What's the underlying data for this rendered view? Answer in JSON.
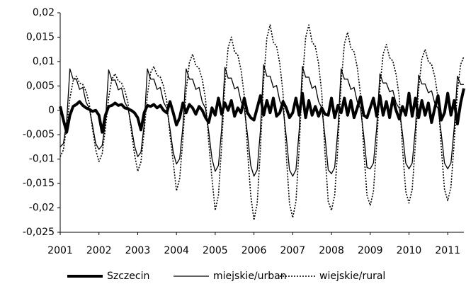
{
  "chart_data": {
    "type": "line",
    "categories": [
      "2001",
      null,
      null,
      null,
      null,
      null,
      null,
      null,
      null,
      null,
      null,
      null,
      "2002",
      null,
      null,
      null,
      null,
      null,
      null,
      null,
      null,
      null,
      null,
      null,
      "2003",
      null,
      null,
      null,
      null,
      null,
      null,
      null,
      null,
      null,
      null,
      null,
      "2004",
      null,
      null,
      null,
      null,
      null,
      null,
      null,
      null,
      null,
      null,
      null,
      "2005",
      null,
      null,
      null,
      null,
      null,
      null,
      null,
      null,
      null,
      null,
      null,
      "2006",
      null,
      null,
      null,
      null,
      null,
      null,
      null,
      null,
      null,
      null,
      null,
      "2007",
      null,
      null,
      null,
      null,
      null,
      null,
      null,
      null,
      null,
      null,
      null,
      "2008",
      null,
      null,
      null,
      null,
      null,
      null,
      null,
      null,
      null,
      null,
      null,
      "2009",
      null,
      null,
      null,
      null,
      null,
      null,
      null,
      null,
      null,
      null,
      null,
      "2010",
      null,
      null,
      null,
      null,
      null,
      null,
      null,
      null,
      null,
      null,
      null,
      "2011",
      null,
      null,
      null,
      null,
      null
    ],
    "ylim": [
      -0.025,
      0.02
    ],
    "yticks": [
      {
        "value": -0.025,
        "label": "-0,025"
      },
      {
        "value": -0.02,
        "label": "-0,02"
      },
      {
        "value": -0.015,
        "label": "-0,015"
      },
      {
        "value": -0.01,
        "label": "-0,01"
      },
      {
        "value": -0.005,
        "label": "-0,005"
      },
      0,
      {
        "value": 0.005,
        "label": "0,005"
      },
      {
        "value": 0.01,
        "label": "0,01"
      },
      {
        "value": 0.015,
        "label": "0,015"
      },
      {
        "value": 0.02,
        "label": "0,02"
      }
    ],
    "grid": false,
    "legend": "bottom",
    "series": [
      {
        "name": "Szczecin",
        "color": "#000000",
        "line_style": "solid",
        "line_width": 4,
        "values": [
          0.0008,
          -0.002,
          -0.0045,
          -0.001,
          0.0008,
          0.0012,
          0.0018,
          0.001,
          0.0005,
          0.0002,
          -0.0002,
          0.0,
          -0.001,
          -0.0045,
          -0.001,
          0.0008,
          0.001,
          0.0015,
          0.001,
          0.0012,
          0.0005,
          0.0003,
          0.0,
          -0.0005,
          -0.0015,
          -0.004,
          -0.0005,
          0.001,
          0.0008,
          0.0012,
          0.0005,
          0.001,
          0.0,
          -0.0005,
          0.0018,
          -0.0005,
          -0.003,
          -0.0015,
          0.0015,
          -0.0005,
          0.0012,
          0.0005,
          -0.0008,
          0.0008,
          0.0,
          -0.0015,
          -0.0025,
          0.0005,
          -0.001,
          0.0025,
          -0.0008,
          0.0015,
          0.0,
          0.002,
          -0.0012,
          0.0005,
          -0.0005,
          0.0025,
          -0.0005,
          -0.0015,
          -0.002,
          0.0005,
          0.003,
          -0.001,
          0.002,
          -0.0005,
          0.0025,
          -0.0012,
          -0.0005,
          0.0018,
          0.0005,
          -0.0015,
          -0.0005,
          0.0025,
          -0.001,
          0.0035,
          -0.0015,
          0.002,
          -0.001,
          0.0008,
          -0.0012,
          0.0005,
          -0.0008,
          -0.001,
          0.0025,
          -0.0015,
          0.001,
          -0.0005,
          0.0025,
          -0.001,
          0.002,
          -0.0015,
          0.0005,
          0.0028,
          -0.001,
          -0.0015,
          0.0005,
          0.0025,
          -0.0012,
          0.003,
          -0.001,
          0.0018,
          -0.0015,
          0.0025,
          0.0,
          -0.0018,
          0.0008,
          -0.001,
          0.0035,
          -0.0012,
          0.0025,
          -0.0015,
          0.002,
          -0.001,
          0.0015,
          -0.0025,
          0.0005,
          0.003,
          -0.002,
          -0.0005,
          0.0035,
          -0.001,
          0.002,
          -0.0028,
          0.0015,
          0.0045
        ]
      },
      {
        "name": "miejskie/urban",
        "color": "#000000",
        "line_style": "solid",
        "line_width": 1.3,
        "values": [
          -0.0075,
          -0.0068,
          -0.0023,
          0.0085,
          0.0064,
          0.0064,
          0.0043,
          0.0047,
          0.0017,
          0.0004,
          -0.003,
          -0.0068,
          -0.008,
          -0.0072,
          -0.0024,
          0.0083,
          0.0062,
          0.0062,
          0.0042,
          0.0046,
          0.0017,
          0.0004,
          -0.0032,
          -0.0072,
          -0.0095,
          -0.0086,
          -0.0029,
          0.0085,
          0.0064,
          0.0064,
          0.0043,
          0.0047,
          0.0017,
          0.0004,
          -0.0038,
          -0.0086,
          -0.011,
          -0.0099,
          -0.0033,
          0.0085,
          0.0064,
          0.0064,
          0.0043,
          0.0047,
          0.0017,
          0.0004,
          -0.0044,
          -0.0099,
          -0.0125,
          -0.0113,
          -0.0038,
          0.0088,
          0.0066,
          0.0066,
          0.0044,
          0.0048,
          0.0018,
          0.0004,
          -0.005,
          -0.0113,
          -0.0135,
          -0.0122,
          -0.0041,
          0.0093,
          0.007,
          0.007,
          0.0047,
          0.0051,
          0.0019,
          0.0005,
          -0.0054,
          -0.0122,
          -0.0135,
          -0.0122,
          -0.0041,
          0.009,
          0.0068,
          0.0068,
          0.0045,
          0.005,
          0.0018,
          0.0005,
          -0.0054,
          -0.0122,
          -0.013,
          -0.0117,
          -0.0039,
          0.0085,
          0.0064,
          0.0064,
          0.0043,
          0.0047,
          0.0017,
          0.0004,
          -0.0052,
          -0.0117,
          -0.012,
          -0.0108,
          -0.0036,
          0.0075,
          0.0056,
          0.0056,
          0.0038,
          0.0041,
          0.0015,
          0.0004,
          -0.0048,
          -0.0108,
          -0.012,
          -0.0108,
          -0.0036,
          0.0072,
          0.0054,
          0.0054,
          0.0036,
          0.004,
          0.0014,
          0.0004,
          -0.0048,
          -0.0108,
          -0.012,
          -0.0108,
          -0.0036,
          0.007,
          0.0053,
          0.0053
        ]
      },
      {
        "name": "wiejskie/rural",
        "color": "#000000",
        "line_style": "dotted",
        "line_width": 1.6,
        "values": [
          -0.0095,
          -0.0081,
          -0.0033,
          0.0025,
          0.006,
          0.007,
          0.0056,
          0.0053,
          0.0039,
          0.0014,
          -0.0038,
          -0.0081,
          -0.0105,
          -0.0089,
          -0.0037,
          0.0026,
          0.0064,
          0.0075,
          0.006,
          0.0056,
          0.0041,
          0.0015,
          -0.0042,
          -0.0089,
          -0.0125,
          -0.0106,
          -0.0044,
          0.0032,
          0.0077,
          0.009,
          0.0072,
          0.0068,
          0.005,
          0.0018,
          -0.005,
          -0.0106,
          -0.0165,
          -0.014,
          -0.0058,
          0.004,
          0.0098,
          0.0115,
          0.0092,
          0.0086,
          0.0063,
          0.0023,
          -0.0066,
          -0.014,
          -0.0205,
          -0.0174,
          -0.0072,
          0.0053,
          0.0128,
          0.015,
          0.012,
          0.0113,
          0.0083,
          0.003,
          -0.0082,
          -0.0174,
          -0.0225,
          -0.0191,
          -0.0079,
          0.0061,
          0.0149,
          0.0175,
          0.014,
          0.0131,
          0.0096,
          0.0035,
          -0.009,
          -0.0191,
          -0.022,
          -0.0187,
          -0.0077,
          0.0061,
          0.0149,
          0.0175,
          0.014,
          0.0131,
          0.0096,
          0.0035,
          -0.0088,
          -0.0187,
          -0.0205,
          -0.0174,
          -0.0072,
          0.0056,
          0.0136,
          0.016,
          0.0128,
          0.012,
          0.0088,
          0.0032,
          -0.0082,
          -0.0174,
          -0.0195,
          -0.0166,
          -0.0068,
          0.0047,
          0.0115,
          0.0135,
          0.0108,
          0.0101,
          0.0074,
          0.0027,
          -0.0078,
          -0.0166,
          -0.019,
          -0.0162,
          -0.0067,
          0.0044,
          0.0106,
          0.0125,
          0.01,
          0.0094,
          0.0069,
          0.0025,
          -0.0076,
          -0.0162,
          -0.0185,
          -0.0157,
          -0.0065,
          0.0039,
          0.0094,
          0.011
        ]
      }
    ]
  }
}
